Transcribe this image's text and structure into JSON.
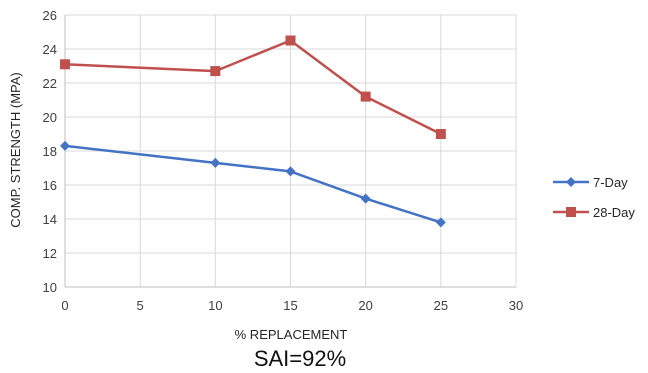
{
  "chart_data": {
    "type": "line",
    "title": "",
    "xlabel": "% REPLACEMENT",
    "ylabel": "COMP. STRENGTH (MPA)",
    "caption": "SAI=92%",
    "xlim": [
      0,
      30
    ],
    "ylim": [
      10,
      26
    ],
    "xticks": [
      0,
      5,
      10,
      15,
      20,
      25,
      30
    ],
    "yticks": [
      10,
      12,
      14,
      16,
      18,
      20,
      22,
      24,
      26
    ],
    "grid": true,
    "legend_position": "right",
    "series": [
      {
        "name": "7-Day",
        "color": "#4472C4",
        "marker": "diamond",
        "x": [
          0,
          10,
          15,
          20,
          25
        ],
        "y": [
          18.3,
          17.3,
          16.8,
          15.2,
          13.8
        ]
      },
      {
        "name": "28-Day",
        "color": "#C0504D",
        "marker": "square",
        "x": [
          0,
          10,
          15,
          20,
          25
        ],
        "y": [
          23.1,
          22.7,
          24.5,
          21.2,
          19.0
        ]
      }
    ]
  }
}
